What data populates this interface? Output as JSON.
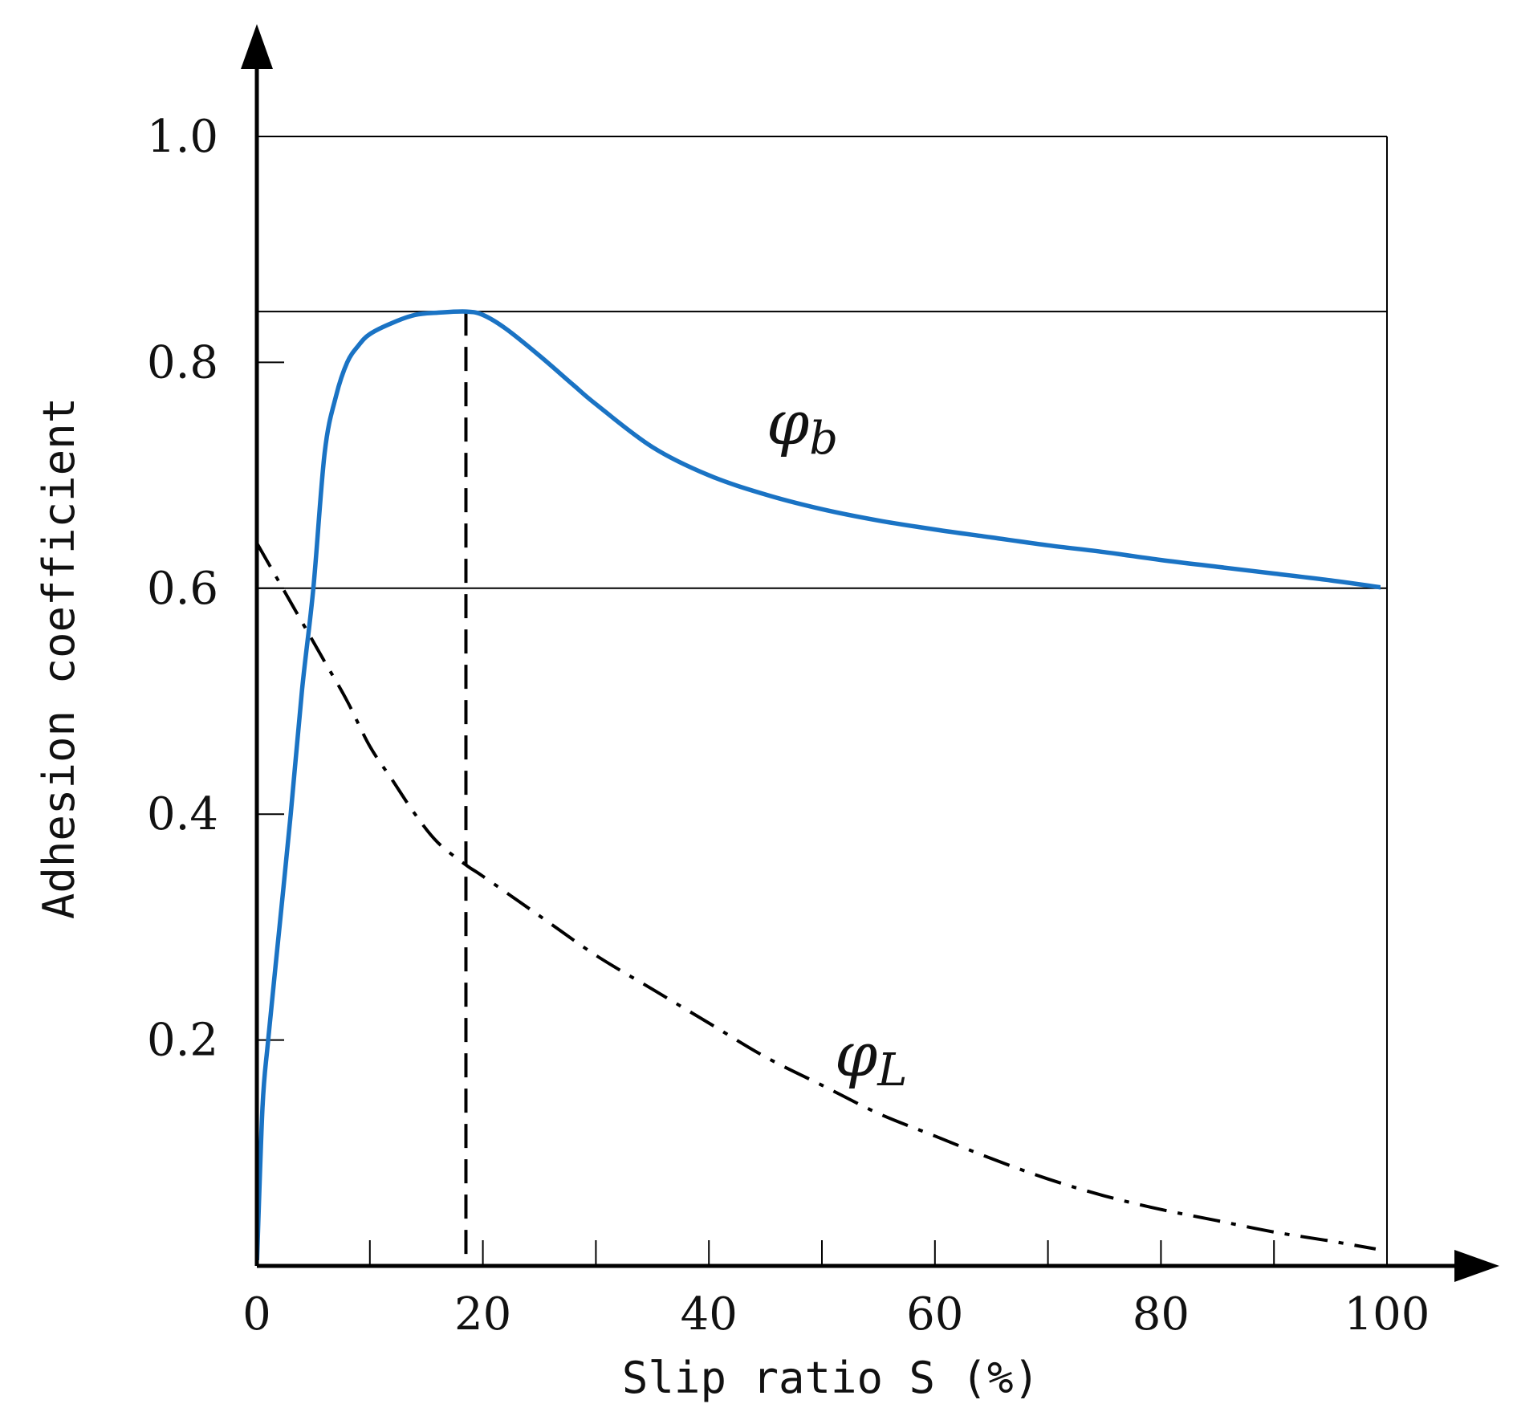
{
  "chart_data": {
    "type": "line",
    "title": "",
    "xlabel": "Slip ratio S (%)",
    "ylabel": "Adhesion coefficient",
    "xlim": [
      0,
      100
    ],
    "ylim": [
      0,
      1.0
    ],
    "x_ticks": [
      0,
      20,
      40,
      60,
      80,
      100
    ],
    "x_tick_labels": [
      "0",
      "20",
      "40",
      "60",
      "80",
      "100"
    ],
    "x_minor_ticks": [
      10,
      30,
      50,
      70,
      90
    ],
    "y_ticks": [
      0.2,
      0.4,
      0.6,
      0.8,
      1.0
    ],
    "y_tick_labels": [
      "0.2",
      "0.4",
      "0.6",
      "0.8",
      "1.0"
    ],
    "peak": {
      "x": 18.5,
      "y": 0.845
    },
    "reference_lines": [
      {
        "kind": "horizontal",
        "y": 1.0
      },
      {
        "kind": "horizontal",
        "y": 0.845
      },
      {
        "kind": "horizontal",
        "y": 0.6
      },
      {
        "kind": "vertical",
        "x": 100
      },
      {
        "kind": "vertical-dashed",
        "x": 18.5
      }
    ],
    "series": [
      {
        "name": "φb",
        "label_main": "φ",
        "label_sub": "b",
        "style": "solid",
        "color": "#1a73c4",
        "x": [
          0,
          0.5,
          1,
          2,
          3,
          4,
          5,
          6,
          7,
          8,
          9,
          10,
          12,
          14,
          16,
          18.5,
          20,
          22,
          25,
          28,
          30,
          35,
          40,
          45,
          50,
          55,
          60,
          65,
          70,
          75,
          80,
          85,
          90,
          95,
          100
        ],
        "y": [
          0,
          0.14,
          0.2,
          0.3,
          0.4,
          0.51,
          0.6,
          0.72,
          0.77,
          0.8,
          0.815,
          0.825,
          0.835,
          0.842,
          0.844,
          0.845,
          0.842,
          0.83,
          0.806,
          0.78,
          0.763,
          0.725,
          0.7,
          0.683,
          0.67,
          0.66,
          0.652,
          0.645,
          0.638,
          0.632,
          0.625,
          0.619,
          0.613,
          0.607,
          0.6
        ]
      },
      {
        "name": "φL",
        "label_main": "φ",
        "label_sub": "L",
        "style": "dashdot",
        "color": "#000000",
        "x": [
          0,
          2,
          4,
          6,
          8,
          10,
          12,
          14,
          16,
          18.5,
          20,
          25,
          30,
          35,
          40,
          45,
          50,
          55,
          60,
          65,
          70,
          75,
          80,
          85,
          90,
          95,
          99
        ],
        "y": [
          0.64,
          0.605,
          0.57,
          0.535,
          0.5,
          0.46,
          0.43,
          0.4,
          0.375,
          0.355,
          0.345,
          0.31,
          0.275,
          0.245,
          0.215,
          0.185,
          0.16,
          0.135,
          0.115,
          0.095,
          0.077,
          0.062,
          0.05,
          0.04,
          0.03,
          0.022,
          0.015
        ]
      }
    ]
  }
}
